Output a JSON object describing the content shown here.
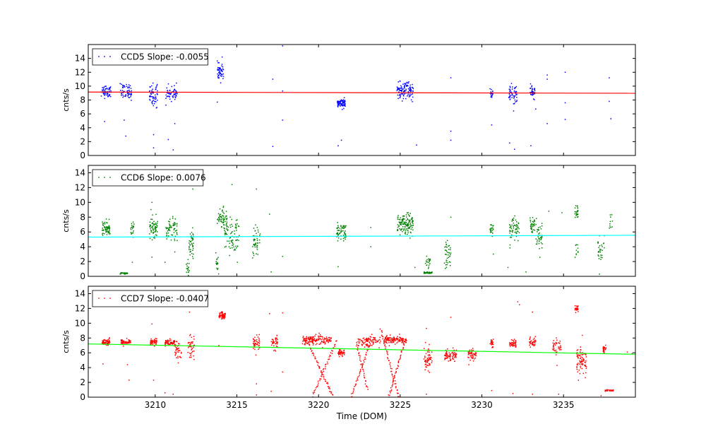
{
  "figure": {
    "xlabel": "Time (DOM)",
    "x_ticks": [
      3210,
      3215,
      3220,
      3225,
      3230,
      3235
    ],
    "xlim": [
      3205.9,
      3239.4
    ]
  },
  "chart_data": [
    {
      "type": "scatter",
      "legend": "CCD5 Slope: -0.0055",
      "ylabel": "cnts/s",
      "ylim": [
        0,
        16
      ],
      "y_ticks": [
        0,
        2,
        4,
        6,
        8,
        10,
        12,
        14
      ],
      "point_color": "#0000ff",
      "fit_color": "#ff0000",
      "fit_line": {
        "x": [
          3205.9,
          3239.4
        ],
        "y": [
          9.15,
          8.97
        ]
      },
      "clusters": [
        {
          "x": 3207.0,
          "y": 9.3,
          "n": 55,
          "w": 0.3,
          "s": 0.45
        },
        {
          "x": 3208.2,
          "y": 9.2,
          "n": 60,
          "w": 0.35,
          "s": 0.55
        },
        {
          "x": 3209.9,
          "y": 8.7,
          "n": 60,
          "w": 0.25,
          "s": 0.8
        },
        {
          "x": 3211.0,
          "y": 9.0,
          "n": 60,
          "w": 0.35,
          "s": 0.5
        },
        {
          "x": 3214.0,
          "y": 12.0,
          "n": 50,
          "w": 0.2,
          "s": 0.6
        },
        {
          "x": 3221.4,
          "y": 7.5,
          "n": 70,
          "w": 0.25,
          "s": 0.3
        },
        {
          "x": 3225.3,
          "y": 9.3,
          "n": 120,
          "w": 0.5,
          "s": 0.6
        },
        {
          "x": 3230.6,
          "y": 9.0,
          "n": 20,
          "w": 0.1,
          "s": 0.5
        },
        {
          "x": 3231.9,
          "y": 8.7,
          "n": 55,
          "w": 0.25,
          "s": 0.8
        },
        {
          "x": 3233.1,
          "y": 9.1,
          "n": 35,
          "w": 0.15,
          "s": 0.4
        }
      ],
      "outliers": [
        [
          3206.9,
          4.9
        ],
        [
          3208.2,
          2.8
        ],
        [
          3208.1,
          5.1
        ],
        [
          3209.9,
          3.0
        ],
        [
          3209.9,
          1.1
        ],
        [
          3210.8,
          2.3
        ],
        [
          3211.1,
          0.8
        ],
        [
          3211.2,
          4.6
        ],
        [
          3213.8,
          7.7
        ],
        [
          3214.1,
          14.2
        ],
        [
          3217.2,
          11.0
        ],
        [
          3217.2,
          1.3
        ],
        [
          3217.8,
          5.1
        ],
        [
          3217.8,
          9.3
        ],
        [
          3217.8,
          15.8
        ],
        [
          3221.2,
          1.4
        ],
        [
          3221.4,
          2.2
        ],
        [
          3226.0,
          1.5
        ],
        [
          3228.1,
          11.2
        ],
        [
          3228.1,
          3.5
        ],
        [
          3228.1,
          2.2
        ],
        [
          3230.6,
          4.4
        ],
        [
          3231.7,
          1.8
        ],
        [
          3232.0,
          0.9
        ],
        [
          3233.0,
          1.4
        ],
        [
          3233.3,
          6.7
        ],
        [
          3234.0,
          11.6
        ],
        [
          3234.0,
          4.6
        ],
        [
          3234.0,
          11.0
        ],
        [
          3235.1,
          12.0
        ],
        [
          3235.1,
          7.6
        ],
        [
          3235.1,
          5.2
        ],
        [
          3237.8,
          11.2
        ],
        [
          3237.8,
          7.8
        ],
        [
          3237.9,
          5.3
        ]
      ]
    },
    {
      "type": "scatter",
      "legend": "CCD6 Slope: 0.0076",
      "ylabel": "cnts/s",
      "ylim": [
        0,
        15
      ],
      "y_ticks": [
        0,
        2,
        4,
        6,
        8,
        10,
        12,
        14
      ],
      "point_color": "#008000",
      "fit_color": "#00ffff",
      "fit_line": {
        "x": [
          3205.9,
          3239.4
        ],
        "y": [
          5.3,
          5.55
        ]
      },
      "clusters": [
        {
          "x": 3207.0,
          "y": 6.5,
          "n": 60,
          "w": 0.25,
          "s": 0.5
        },
        {
          "x": 3208.1,
          "y": 0.4,
          "n": 30,
          "w": 0.25,
          "s": 0.05
        },
        {
          "x": 3208.6,
          "y": 6.5,
          "n": 20,
          "w": 0.1,
          "s": 0.5
        },
        {
          "x": 3209.9,
          "y": 6.5,
          "n": 60,
          "w": 0.25,
          "s": 0.8
        },
        {
          "x": 3211.0,
          "y": 6.3,
          "n": 60,
          "w": 0.35,
          "s": 0.7
        },
        {
          "x": 3212.2,
          "y": 4.5,
          "n": 45,
          "w": 0.15,
          "s": 1.2
        },
        {
          "x": 3212.0,
          "y": 1.0,
          "n": 20,
          "w": 0.1,
          "s": 0.8
        },
        {
          "x": 3213.8,
          "y": 2.0,
          "n": 15,
          "w": 0.1,
          "s": 0.8
        },
        {
          "x": 3214.1,
          "y": 7.8,
          "n": 60,
          "w": 0.3,
          "s": 0.7
        },
        {
          "x": 3214.7,
          "y": 5.3,
          "n": 80,
          "w": 0.45,
          "s": 1.3
        },
        {
          "x": 3216.2,
          "y": 4.5,
          "n": 50,
          "w": 0.25,
          "s": 1.1
        },
        {
          "x": 3221.4,
          "y": 6.0,
          "n": 60,
          "w": 0.3,
          "s": 0.6
        },
        {
          "x": 3225.3,
          "y": 7.0,
          "n": 130,
          "w": 0.5,
          "s": 0.7
        },
        {
          "x": 3226.7,
          "y": 0.5,
          "n": 40,
          "w": 0.25,
          "s": 0.05
        },
        {
          "x": 3226.7,
          "y": 1.8,
          "n": 20,
          "w": 0.15,
          "s": 0.6
        },
        {
          "x": 3227.9,
          "y": 2.6,
          "n": 40,
          "w": 0.2,
          "s": 1.0
        },
        {
          "x": 3230.6,
          "y": 6.3,
          "n": 20,
          "w": 0.1,
          "s": 0.4
        },
        {
          "x": 3232.0,
          "y": 6.5,
          "n": 60,
          "w": 0.3,
          "s": 0.8
        },
        {
          "x": 3233.1,
          "y": 7.0,
          "n": 35,
          "w": 0.15,
          "s": 0.5
        },
        {
          "x": 3233.5,
          "y": 5.5,
          "n": 40,
          "w": 0.2,
          "s": 1.0
        },
        {
          "x": 3235.8,
          "y": 8.6,
          "n": 25,
          "w": 0.1,
          "s": 0.5
        },
        {
          "x": 3235.8,
          "y": 3.3,
          "n": 10,
          "w": 0.1,
          "s": 0.6
        },
        {
          "x": 3237.3,
          "y": 3.5,
          "n": 30,
          "w": 0.2,
          "s": 1.0
        },
        {
          "x": 3237.9,
          "y": 7.5,
          "n": 10,
          "w": 0.1,
          "s": 0.6
        }
      ],
      "outliers": [
        [
          3208.6,
          1.9
        ],
        [
          3209.8,
          10.0
        ],
        [
          3209.8,
          2.6
        ],
        [
          3210.6,
          1.9
        ],
        [
          3211.2,
          3.3
        ],
        [
          3212.3,
          11.8
        ],
        [
          3214.7,
          12.4
        ],
        [
          3216.2,
          11.8
        ],
        [
          3217.0,
          8.4
        ],
        [
          3217.1,
          0.6
        ],
        [
          3217.8,
          2.7
        ],
        [
          3221.2,
          1.3
        ],
        [
          3223.2,
          6.6
        ],
        [
          3223.2,
          4.0
        ],
        [
          3225.9,
          1.2
        ],
        [
          3228.1,
          8.0
        ],
        [
          3230.7,
          3.0
        ],
        [
          3231.6,
          1.2
        ],
        [
          3232.7,
          0.6
        ],
        [
          3234.1,
          8.8
        ],
        [
          3234.9,
          8.6
        ],
        [
          3237.2,
          0.3
        ]
      ]
    },
    {
      "type": "scatter",
      "legend": "CCD7 Slope: -0.0407",
      "ylabel": "cnts/s",
      "ylim": [
        0,
        15
      ],
      "y_ticks": [
        0,
        2,
        4,
        6,
        8,
        10,
        12,
        14
      ],
      "point_color": "#ff0000",
      "fit_color": "#00ff00",
      "fit_line": {
        "x": [
          3205.9,
          3239.4
        ],
        "y": [
          7.2,
          5.8
        ]
      },
      "clusters": [
        {
          "x": 3207.0,
          "y": 7.5,
          "n": 60,
          "w": 0.25,
          "s": 0.2
        },
        {
          "x": 3208.2,
          "y": 7.4,
          "n": 60,
          "w": 0.3,
          "s": 0.2
        },
        {
          "x": 3209.9,
          "y": 7.4,
          "n": 50,
          "w": 0.2,
          "s": 0.25
        },
        {
          "x": 3210.9,
          "y": 7.4,
          "n": 60,
          "w": 0.3,
          "s": 0.2
        },
        {
          "x": 3211.4,
          "y": 6.3,
          "n": 40,
          "w": 0.2,
          "s": 0.8
        },
        {
          "x": 3212.2,
          "y": 6.7,
          "n": 40,
          "w": 0.2,
          "s": 0.9
        },
        {
          "x": 3214.1,
          "y": 11.0,
          "n": 60,
          "w": 0.2,
          "s": 0.25
        },
        {
          "x": 3216.2,
          "y": 7.2,
          "n": 45,
          "w": 0.2,
          "s": 0.5
        },
        {
          "x": 3217.3,
          "y": 7.3,
          "n": 40,
          "w": 0.2,
          "s": 0.5
        },
        {
          "x": 3219.9,
          "y": 7.7,
          "n": 150,
          "w": 0.9,
          "s": 0.3
        },
        {
          "x": 3221.4,
          "y": 6.0,
          "n": 40,
          "w": 0.2,
          "s": 0.2
        },
        {
          "x": 3223.1,
          "y": 7.6,
          "n": 90,
          "w": 0.7,
          "s": 0.35
        },
        {
          "x": 3224.7,
          "y": 7.8,
          "n": 120,
          "w": 0.7,
          "s": 0.25
        },
        {
          "x": 3226.7,
          "y": 5.2,
          "n": 60,
          "w": 0.25,
          "s": 0.8
        },
        {
          "x": 3227.9,
          "y": 5.6,
          "n": 40,
          "w": 0.2,
          "s": 0.5
        },
        {
          "x": 3228.3,
          "y": 5.6,
          "n": 30,
          "w": 0.15,
          "s": 0.5
        },
        {
          "x": 3229.4,
          "y": 5.8,
          "n": 50,
          "w": 0.25,
          "s": 0.3
        },
        {
          "x": 3230.6,
          "y": 7.3,
          "n": 20,
          "w": 0.1,
          "s": 0.25
        },
        {
          "x": 3231.9,
          "y": 7.3,
          "n": 40,
          "w": 0.2,
          "s": 0.3
        },
        {
          "x": 3233.1,
          "y": 7.4,
          "n": 40,
          "w": 0.2,
          "s": 0.3
        },
        {
          "x": 3234.6,
          "y": 6.8,
          "n": 40,
          "w": 0.25,
          "s": 0.6
        },
        {
          "x": 3235.8,
          "y": 12.0,
          "n": 20,
          "w": 0.1,
          "s": 0.2
        },
        {
          "x": 3236.1,
          "y": 4.8,
          "n": 80,
          "w": 0.3,
          "s": 1.0
        },
        {
          "x": 3237.5,
          "y": 6.5,
          "n": 25,
          "w": 0.1,
          "s": 0.3
        },
        {
          "x": 3237.8,
          "y": 0.9,
          "n": 30,
          "w": 0.25,
          "s": 0.05
        }
      ],
      "strands": [
        {
          "x0": 3219.3,
          "y0": 7.6,
          "x1": 3220.9,
          "y1": 0.0,
          "n": 55
        },
        {
          "x0": 3219.6,
          "y0": 0.0,
          "x1": 3221.1,
          "y1": 7.6,
          "n": 45
        },
        {
          "x0": 3222.0,
          "y0": 0.0,
          "x1": 3223.2,
          "y1": 7.5,
          "n": 45
        },
        {
          "x0": 3222.3,
          "y0": 7.5,
          "x1": 3223.0,
          "y1": 1.0,
          "n": 30
        },
        {
          "x0": 3223.8,
          "y0": 9.3,
          "x1": 3224.9,
          "y1": 0.0,
          "n": 45
        },
        {
          "x0": 3224.3,
          "y0": 0.0,
          "x1": 3225.3,
          "y1": 7.7,
          "n": 45
        }
      ],
      "outliers": [
        [
          3206.8,
          4.5
        ],
        [
          3208.3,
          4.4
        ],
        [
          3208.4,
          2.3
        ],
        [
          3209.8,
          9.9
        ],
        [
          3209.9,
          2.3
        ],
        [
          3210.6,
          0.6
        ],
        [
          3211.1,
          0.4
        ],
        [
          3212.1,
          11.5
        ],
        [
          3213.9,
          7.0
        ],
        [
          3216.2,
          1.8
        ],
        [
          3216.2,
          0.3
        ],
        [
          3217.0,
          11.3
        ],
        [
          3217.1,
          0.8
        ],
        [
          3217.8,
          11.4
        ],
        [
          3217.8,
          3.4
        ],
        [
          3226.6,
          9.3
        ],
        [
          3226.6,
          0.4
        ],
        [
          3228.1,
          10.8
        ],
        [
          3229.2,
          4.4
        ],
        [
          3230.6,
          0.9
        ],
        [
          3231.9,
          0.5
        ],
        [
          3232.2,
          12.9
        ],
        [
          3232.3,
          12.5
        ],
        [
          3233.1,
          11.5
        ],
        [
          3233.1,
          0.4
        ],
        [
          3234.6,
          4.3
        ],
        [
          3234.7,
          0.4
        ],
        [
          3235.7,
          11.8
        ],
        [
          3237.3,
          0.2
        ],
        [
          3238.9,
          6.1
        ],
        [
          3239.2,
          5.9
        ]
      ]
    }
  ]
}
